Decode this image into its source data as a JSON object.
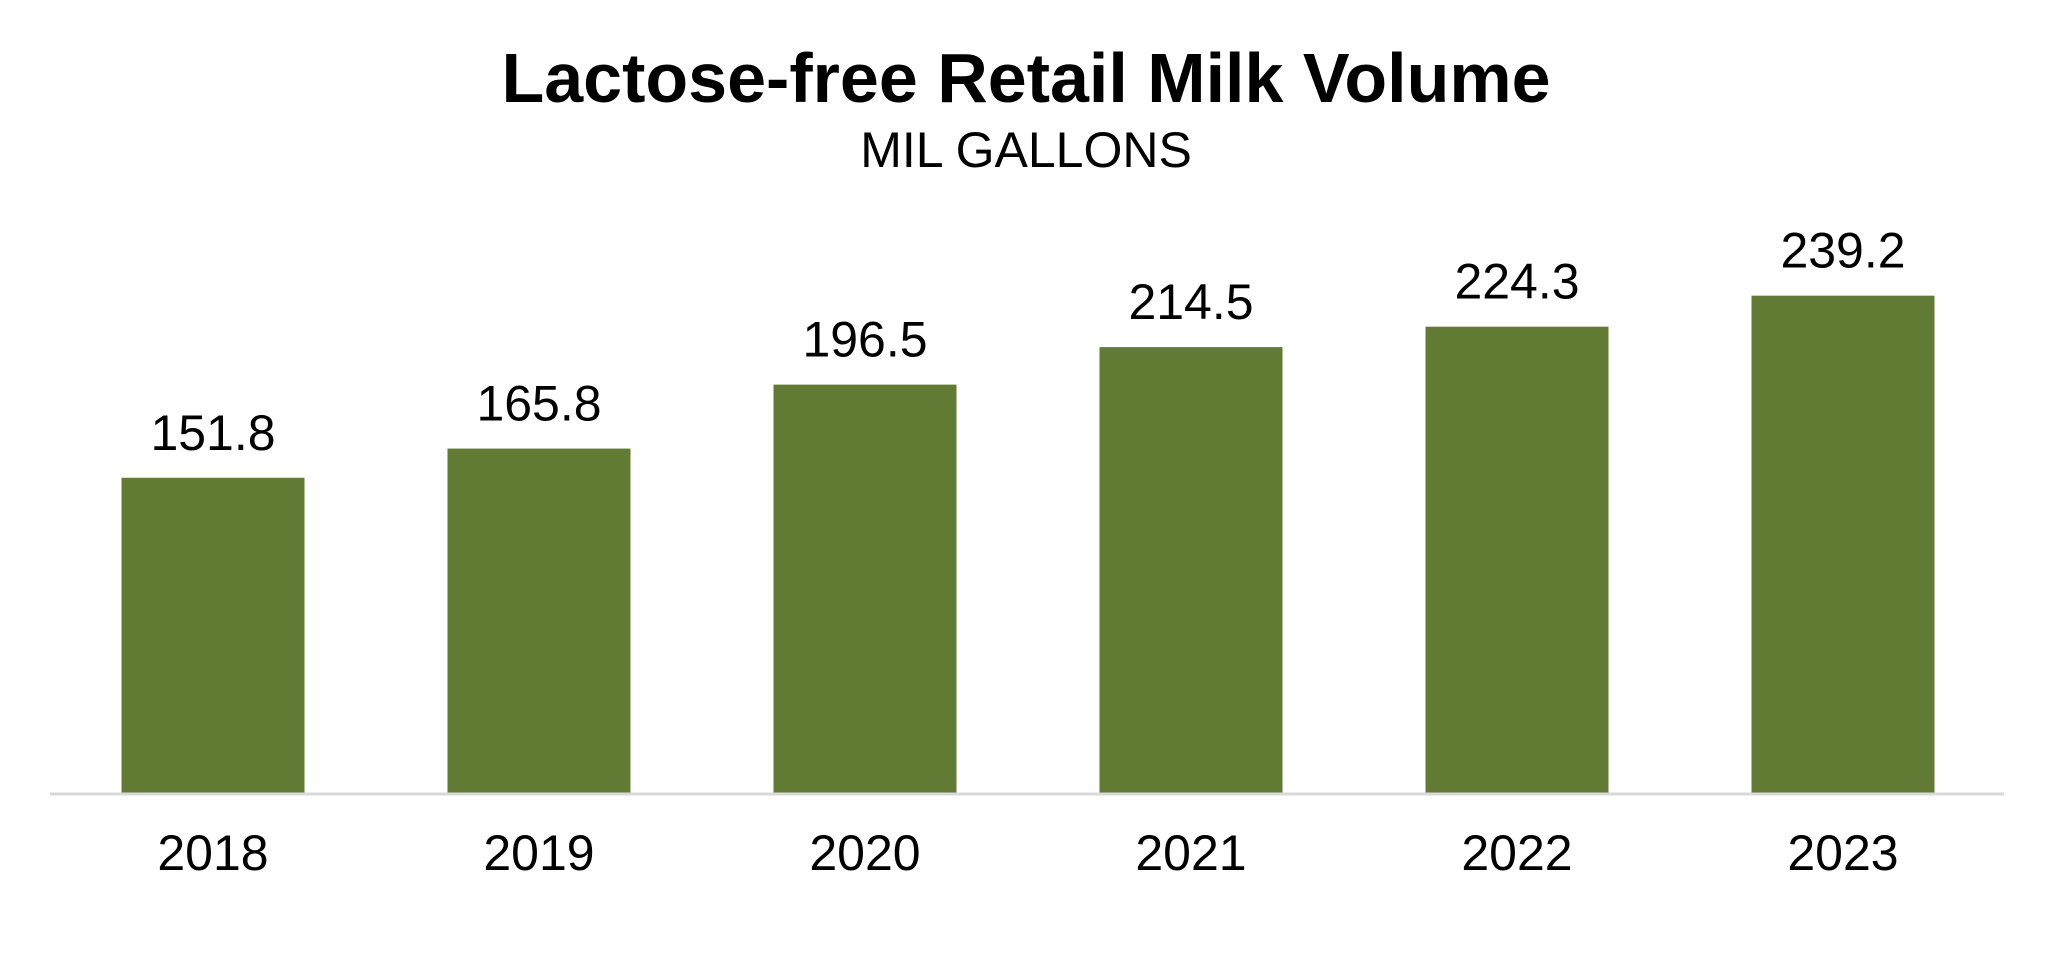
{
  "chart_data": {
    "type": "bar",
    "title": "Lactose-free Retail Milk Volume",
    "subtitle": "MIL GALLONS",
    "categories": [
      "2018",
      "2019",
      "2020",
      "2021",
      "2022",
      "2023"
    ],
    "values": [
      151.8,
      165.8,
      196.5,
      214.5,
      224.3,
      239.2
    ],
    "value_labels": [
      "151.8",
      "165.8",
      "196.5",
      "214.5",
      "224.3",
      "239.2"
    ],
    "ylim": [
      0,
      240
    ],
    "grid": false,
    "legend": "none",
    "bar_color": "#627b34",
    "axis_color": "#d9d9d9"
  }
}
